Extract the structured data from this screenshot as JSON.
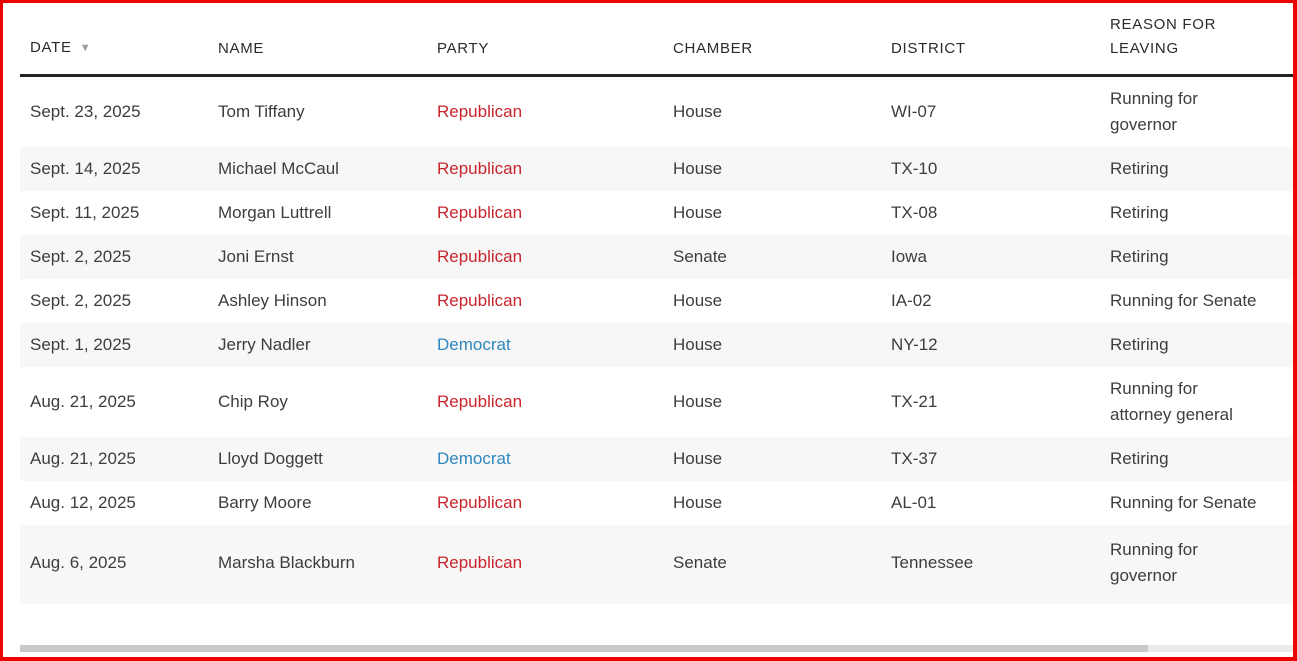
{
  "table": {
    "columns": [
      {
        "key": "date",
        "label": "Date",
        "sorted": "desc"
      },
      {
        "key": "name",
        "label": "Name"
      },
      {
        "key": "party",
        "label": "Party"
      },
      {
        "key": "chamber",
        "label": "Chamber"
      },
      {
        "key": "district",
        "label": "District"
      },
      {
        "key": "reason",
        "label": "Reason for leaving"
      }
    ],
    "rows": [
      {
        "date": "Sept. 23, 2025",
        "name": "Tom Tiffany",
        "party": "Republican",
        "chamber": "House",
        "district": "WI-07",
        "reason": "Running for governor"
      },
      {
        "date": "Sept. 14, 2025",
        "name": "Michael McCaul",
        "party": "Republican",
        "chamber": "House",
        "district": "TX-10",
        "reason": "Retiring"
      },
      {
        "date": "Sept. 11, 2025",
        "name": "Morgan Luttrell",
        "party": "Republican",
        "chamber": "House",
        "district": "TX-08",
        "reason": "Retiring"
      },
      {
        "date": "Sept. 2, 2025",
        "name": "Joni Ernst",
        "party": "Republican",
        "chamber": "Senate",
        "district": "Iowa",
        "reason": "Retiring"
      },
      {
        "date": "Sept. 2, 2025",
        "name": "Ashley Hinson",
        "party": "Republican",
        "chamber": "House",
        "district": "IA-02",
        "reason": "Running for Senate"
      },
      {
        "date": "Sept. 1, 2025",
        "name": "Jerry Nadler",
        "party": "Democrat",
        "chamber": "House",
        "district": "NY-12",
        "reason": "Retiring"
      },
      {
        "date": "Aug. 21, 2025",
        "name": "Chip Roy",
        "party": "Republican",
        "chamber": "House",
        "district": "TX-21",
        "reason": "Running for attorney general"
      },
      {
        "date": "Aug. 21, 2025",
        "name": "Lloyd Doggett",
        "party": "Democrat",
        "chamber": "House",
        "district": "TX-37",
        "reason": "Retiring"
      },
      {
        "date": "Aug. 12, 2025",
        "name": "Barry Moore",
        "party": "Republican",
        "chamber": "House",
        "district": "AL-01",
        "reason": "Running for Senate"
      },
      {
        "date": "Aug. 6, 2025",
        "name": "Marsha Blackburn",
        "party": "Republican",
        "chamber": "Senate",
        "district": "Tennessee",
        "reason": "Running for governor"
      }
    ]
  },
  "icons": {
    "sort_desc": "▼"
  },
  "colors": {
    "republican": "#c9252c",
    "democrat": "#2e87be",
    "frame_red": "#ee0000",
    "header_rule": "#222222",
    "row_alt": "#f7f7f7",
    "scrollbar_thumb": "#c9c9c9",
    "scrollbar_track": "#ebebeb"
  }
}
